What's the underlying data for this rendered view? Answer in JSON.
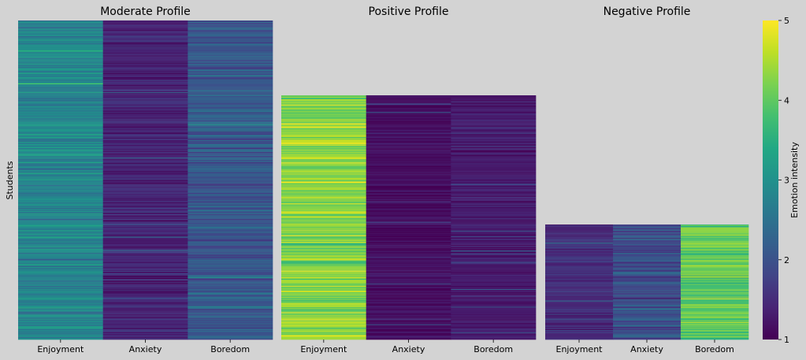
{
  "figure": {
    "background": "#d3d3d3",
    "y_axis_label": "Students",
    "colorbar": {
      "label": "Emotion intensity",
      "colormap": "viridis",
      "range": [
        1,
        5
      ],
      "ticks": [
        "1",
        "2",
        "3",
        "4",
        "5"
      ],
      "colors": [
        "#440154",
        "#482475",
        "#414487",
        "#355f8d",
        "#2a788e",
        "#21918c",
        "#22a884",
        "#44bf70",
        "#7ad151",
        "#bddf26",
        "#fde725"
      ]
    }
  },
  "chart_data": [
    {
      "type": "heatmap",
      "title": "Moderate Profile",
      "columns": [
        "Enjoyment",
        "Anxiety",
        "Boredom"
      ],
      "row_count": 400,
      "column_means": [
        2.8,
        1.4,
        2.1
      ],
      "column_spread": [
        0.35,
        0.25,
        0.35
      ],
      "seed": 11
    },
    {
      "type": "heatmap",
      "title": "Positive Profile",
      "columns": [
        "Enjoyment",
        "Anxiety",
        "Boredom"
      ],
      "row_count": 305,
      "column_means": [
        4.25,
        1.15,
        1.3
      ],
      "column_spread": [
        0.4,
        0.15,
        0.2
      ],
      "seed": 23
    },
    {
      "type": "heatmap",
      "title": "Negative Profile",
      "columns": [
        "Enjoyment",
        "Anxiety",
        "Boredom"
      ],
      "row_count": 145,
      "column_means": [
        1.5,
        2.0,
        4.0
      ],
      "column_spread": [
        0.25,
        0.4,
        0.45
      ],
      "seed": 37
    }
  ]
}
